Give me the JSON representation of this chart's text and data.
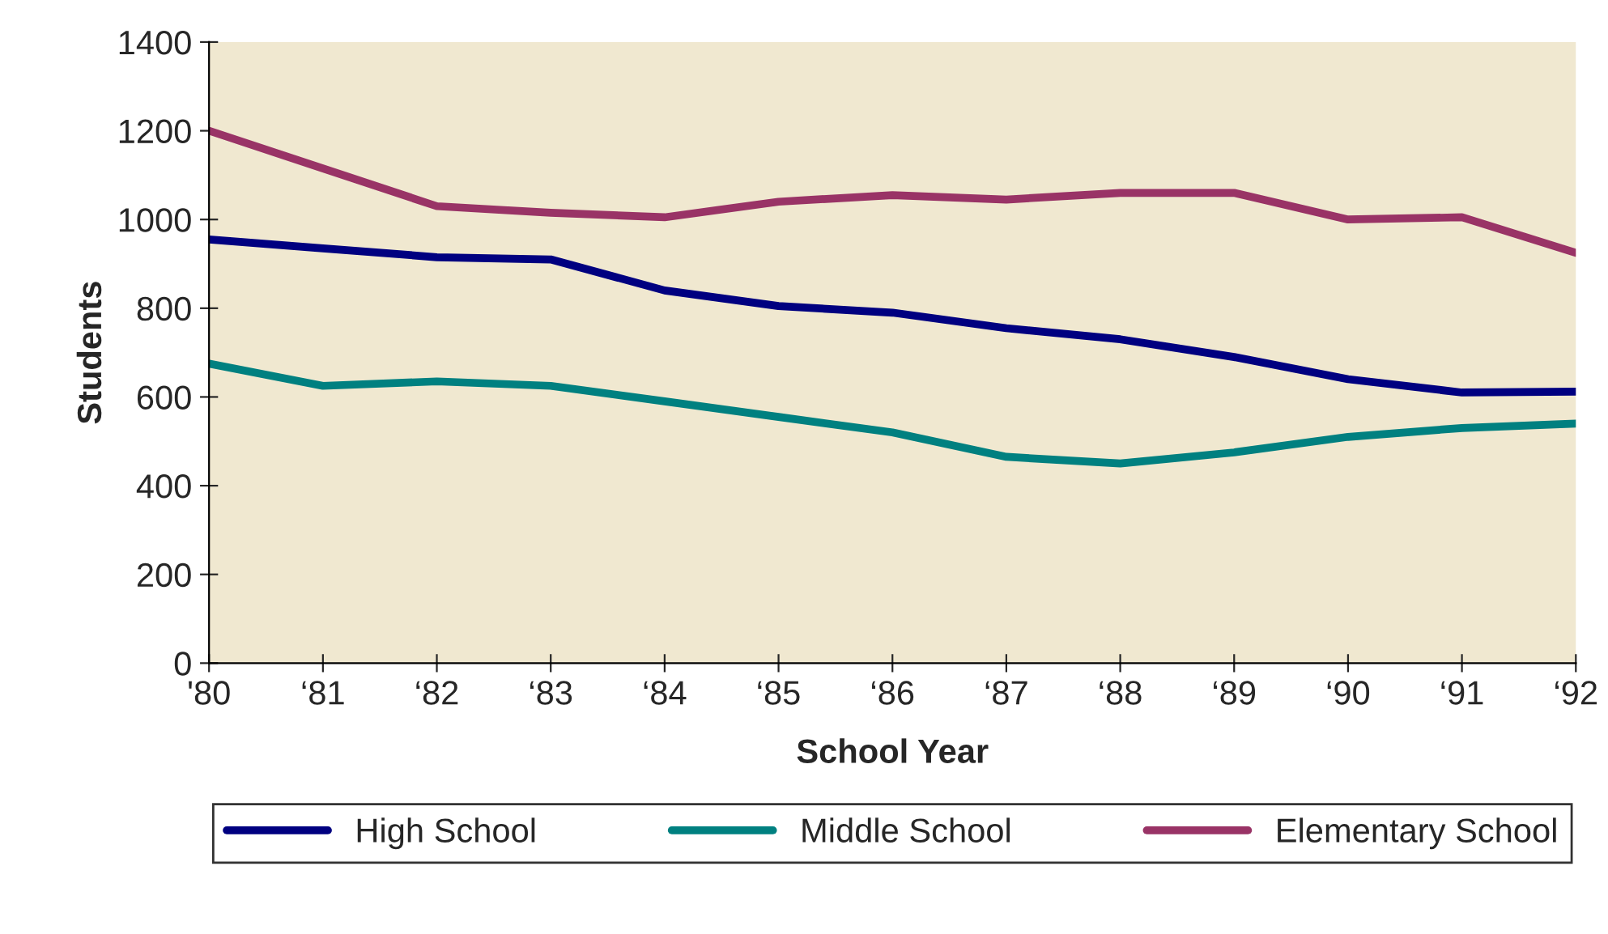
{
  "chart_data": {
    "type": "line",
    "xlabel": "School Year",
    "ylabel": "Students",
    "categories": [
      "'80",
      "‘81",
      "‘82",
      "‘83",
      "‘84",
      "‘85",
      "‘86",
      "‘87",
      "‘88",
      "‘89",
      "‘90",
      "‘91",
      "‘92"
    ],
    "series": [
      {
        "name": "High School",
        "color": "#000080",
        "values": [
          955,
          935,
          915,
          910,
          840,
          805,
          790,
          755,
          730,
          690,
          640,
          610,
          612
        ]
      },
      {
        "name": "Middle School",
        "color": "#008080",
        "values": [
          675,
          625,
          635,
          625,
          590,
          555,
          520,
          465,
          450,
          475,
          510,
          530,
          540
        ]
      },
      {
        "name": "Elementary School",
        "color": "#993366",
        "values": [
          1200,
          1115,
          1030,
          1015,
          1005,
          1040,
          1055,
          1045,
          1060,
          1060,
          1000,
          1005,
          925
        ]
      }
    ],
    "ylim": [
      0,
      1400
    ],
    "yticks": [
      0,
      200,
      400,
      600,
      800,
      1000,
      1200,
      1400
    ],
    "grid": false,
    "legend": "bottom",
    "marker": "none",
    "line_style": "solid"
  }
}
